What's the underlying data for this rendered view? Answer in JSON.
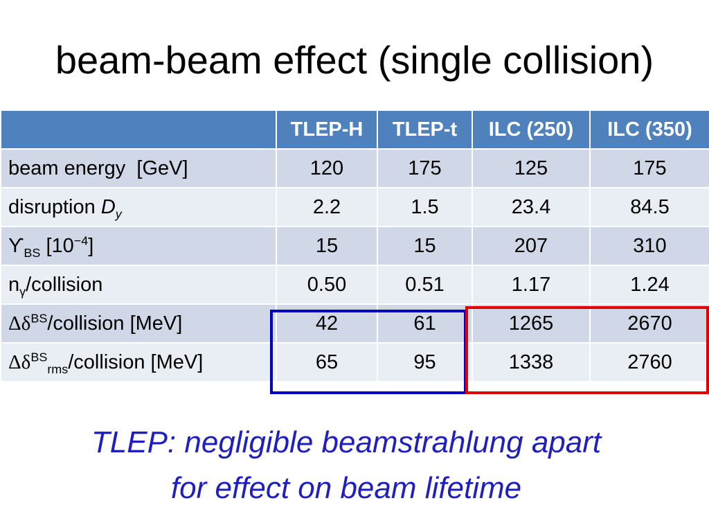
{
  "title": "beam-beam effect (single collision)",
  "table": {
    "columns": [
      "",
      "TLEP-H",
      "TLEP-t",
      "ILC (250)",
      "ILC (350)"
    ],
    "rows": [
      {
        "label": {
          "main": "beam energy  [GeV]"
        },
        "values": [
          "120",
          "175",
          "125",
          "175"
        ]
      },
      {
        "label": {
          "main": "disruption ",
          "italic": "D",
          "sub": "y"
        },
        "values": [
          "2.2",
          "1.5",
          "23.4",
          "84.5"
        ]
      },
      {
        "label": {
          "main": "ϒ",
          "sub": "BS",
          "rest": " [10",
          "sup": "−4",
          "tail": "]"
        },
        "values": [
          "15",
          "15",
          "207",
          "310"
        ]
      },
      {
        "label": {
          "main": "n",
          "sub": "γ",
          "rest": "/collision"
        },
        "values": [
          "0.50",
          "0.51",
          "1.17",
          "1.24"
        ]
      },
      {
        "label": {
          "symbol": "Δδ",
          "sup": "BS",
          "rest": "/collision [MeV]"
        },
        "values": [
          "42",
          "61",
          "1265",
          "2670"
        ]
      },
      {
        "label": {
          "symbol": "Δδ",
          "sup": "BS",
          "sub": "rms",
          "rest": "/collision [MeV]"
        },
        "values": [
          "65",
          "95",
          "1338",
          "2760"
        ]
      }
    ]
  },
  "conclusion": {
    "line1": "TLEP: negligible beamstrahlung apart",
    "line2": "for effect on beam lifetime"
  },
  "colors": {
    "header_bg": "#4f81bd",
    "row_dark": "#d0d8e8",
    "row_light": "#e9edf4",
    "highlight_tlep": "#0000c0",
    "highlight_ilc": "#e00000",
    "conclusion_text": "#1f1fbf"
  }
}
